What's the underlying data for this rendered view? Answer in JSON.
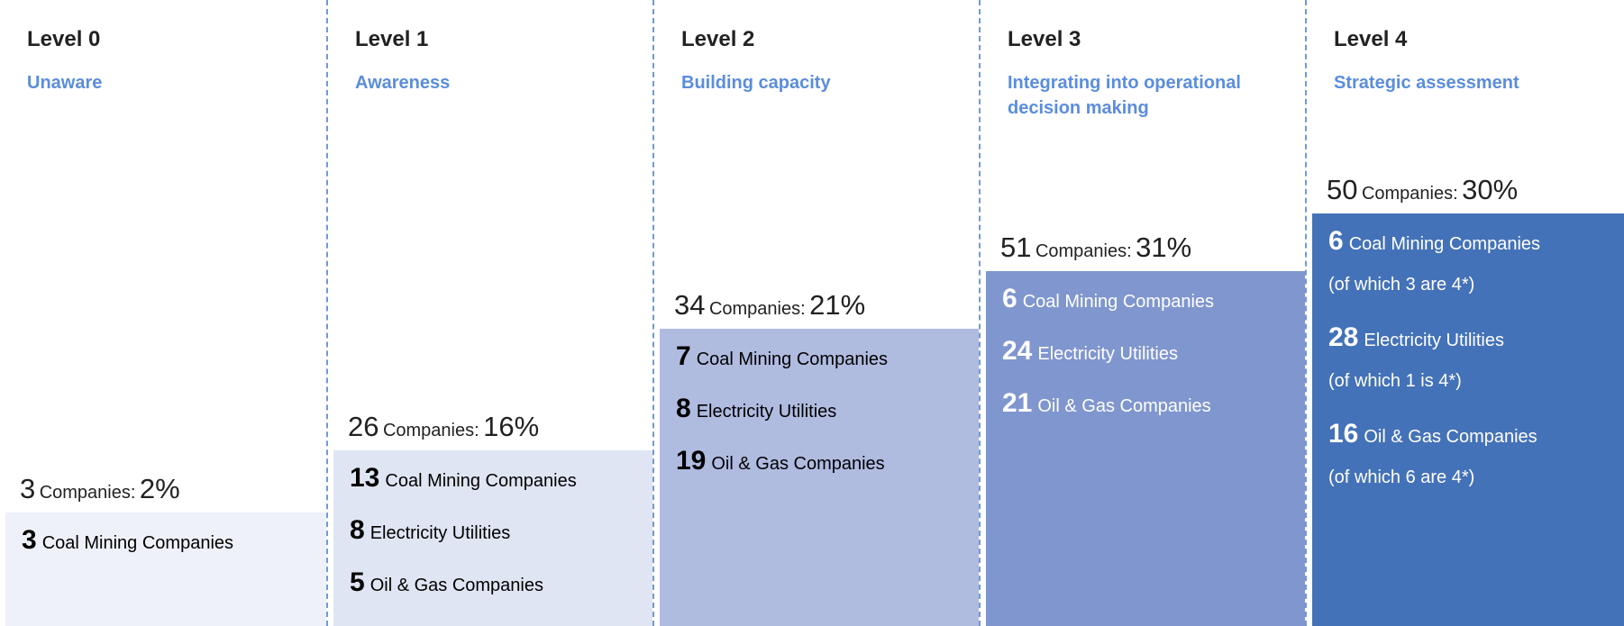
{
  "levels": [
    {
      "level": "Level 0",
      "name": "Unaware",
      "count": "3",
      "unit": "Companies:",
      "share": "2%",
      "items": [
        {
          "count": "3",
          "label": "Coal Mining Companies"
        }
      ]
    },
    {
      "level": "Level 1",
      "name": "Awareness",
      "count": "26",
      "unit": "Companies:",
      "share": "16%",
      "items": [
        {
          "count": "13",
          "label": "Coal Mining Companies"
        },
        {
          "count": "8",
          "label": "Electricity Utilities"
        },
        {
          "count": "5",
          "label": "Oil & Gas Companies"
        }
      ]
    },
    {
      "level": "Level 2",
      "name": "Building capacity",
      "count": "34",
      "unit": "Companies:",
      "share": "21%",
      "items": [
        {
          "count": "7",
          "label": "Coal Mining Companies"
        },
        {
          "count": "8",
          "label": "Electricity Utilities"
        },
        {
          "count": "19",
          "label": "Oil & Gas Companies"
        }
      ]
    },
    {
      "level": "Level 3",
      "name": "Integrating into operational decision making",
      "count": "51",
      "unit": "Companies:",
      "share": "31%",
      "items": [
        {
          "count": "6",
          "label": "Coal Mining Companies"
        },
        {
          "count": "24",
          "label": "Electricity Utilities"
        },
        {
          "count": "21",
          "label": "Oil & Gas Companies"
        }
      ]
    },
    {
      "level": "Level 4",
      "name": "Strategic assessment",
      "count": "50",
      "unit": "Companies:",
      "share": "30%",
      "items": [
        {
          "count": "6",
          "label": "Coal Mining Companies",
          "note": "(of which 3 are 4*)"
        },
        {
          "count": "28",
          "label": "Electricity Utilities",
          "note": "(of which 1 is 4*)"
        },
        {
          "count": "16",
          "label": "Oil & Gas Companies",
          "note": "(of which 6 are 4*)"
        }
      ]
    }
  ]
}
